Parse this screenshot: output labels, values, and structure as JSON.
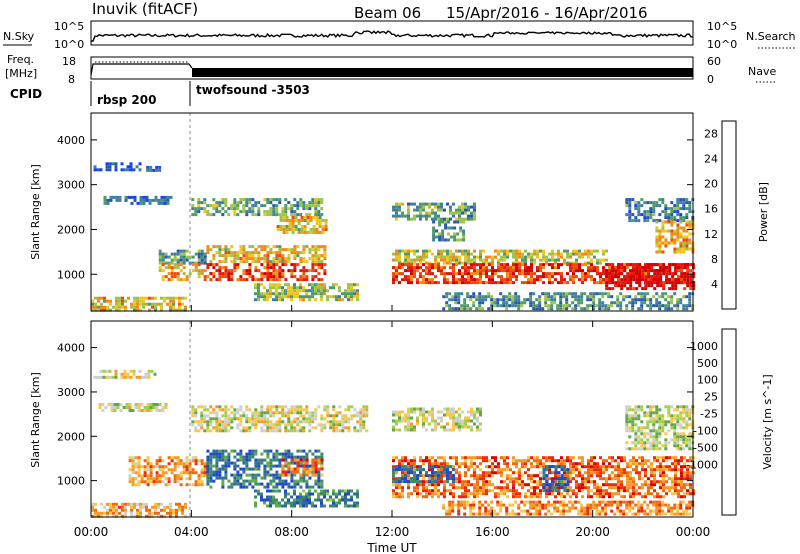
{
  "header": {
    "station": "Inuvik (fitACF)",
    "beam": "Beam 06",
    "dates": "15/Apr/2016 - 16/Apr/2016"
  },
  "top_panels": {
    "nsky_label": "N.Sky",
    "nsearch_label": "N.Search",
    "nsky_ticks": [
      "10^5",
      "10^0"
    ],
    "nsearch_ticks": [
      "10^5",
      "10^0"
    ],
    "freq_label_1": "Freq.",
    "freq_label_2": "[MHz]",
    "freq_ticks": [
      "18",
      "8"
    ],
    "nave_label": "Nave",
    "nave_ticks": [
      "60",
      "0"
    ],
    "cpid_label": "CPID",
    "cpid_segments": [
      {
        "name": "rbsp 200",
        "start_hour": 0
      },
      {
        "name": "twofsound -3503",
        "start_hour": 4
      }
    ]
  },
  "chart_data": [
    {
      "type": "heatmap",
      "panel": "power",
      "ylabel": "Slant Range [km]",
      "yticks": [
        "1000",
        "2000",
        "3000",
        "4000"
      ],
      "ylim": [
        180,
        4600
      ],
      "xlim_hours": [
        0,
        24
      ],
      "colorbar": {
        "label": "Power [dB]",
        "ticks": [
          "4",
          "8",
          "12",
          "16",
          "20",
          "24",
          "28"
        ],
        "range": [
          0,
          30
        ],
        "colors": [
          "#1a3cff",
          "#2a58b0",
          "#3f7fa0",
          "#4f9a6a",
          "#9ec24a",
          "#f2c51e",
          "#f48a16",
          "#f04a10",
          "#e41a0e",
          "#d40000"
        ]
      },
      "regions": [
        {
          "t0": 0.1,
          "t1": 1.9,
          "r0": 3350,
          "r1": 3500,
          "level": 0.1
        },
        {
          "t0": 2.2,
          "t1": 3.0,
          "r0": 3300,
          "r1": 3420,
          "level": 0.15
        },
        {
          "t0": 0.5,
          "t1": 3.2,
          "r0": 2600,
          "r1": 2750,
          "level": 0.2
        },
        {
          "t0": 4.0,
          "t1": 9.2,
          "r0": 2350,
          "r1": 2700,
          "level": 0.35
        },
        {
          "t0": 7.4,
          "t1": 9.4,
          "r0": 1950,
          "r1": 2300,
          "level": 0.55
        },
        {
          "t0": 2.7,
          "t1": 4.6,
          "r0": 1250,
          "r1": 1550,
          "level": 0.3
        },
        {
          "t0": 2.7,
          "t1": 4.6,
          "r0": 900,
          "r1": 1250,
          "level": 0.6
        },
        {
          "t0": 4.6,
          "t1": 9.3,
          "r0": 1250,
          "r1": 1650,
          "level": 0.55
        },
        {
          "t0": 4.6,
          "t1": 9.3,
          "r0": 850,
          "r1": 1250,
          "level": 0.8
        },
        {
          "t0": 6.5,
          "t1": 10.6,
          "r0": 400,
          "r1": 800,
          "level": 0.45
        },
        {
          "t0": 0.0,
          "t1": 3.8,
          "r0": 200,
          "r1": 500,
          "level": 0.55
        },
        {
          "t0": 12.0,
          "t1": 15.3,
          "r0": 2200,
          "r1": 2600,
          "level": 0.35
        },
        {
          "t0": 13.6,
          "t1": 14.8,
          "r0": 1750,
          "r1": 2200,
          "level": 0.3
        },
        {
          "t0": 12.0,
          "t1": 20.5,
          "r0": 1250,
          "r1": 1550,
          "level": 0.5
        },
        {
          "t0": 12.0,
          "t1": 24.0,
          "r0": 800,
          "r1": 1250,
          "level": 0.8
        },
        {
          "t0": 20.5,
          "t1": 24.0,
          "r0": 700,
          "r1": 1250,
          "level": 0.95
        },
        {
          "t0": 21.3,
          "t1": 24.0,
          "r0": 2200,
          "r1": 2700,
          "level": 0.25
        },
        {
          "t0": 22.5,
          "t1": 24.0,
          "r0": 1500,
          "r1": 2200,
          "level": 0.6
        },
        {
          "t0": 14.0,
          "t1": 24.0,
          "r0": 250,
          "r1": 600,
          "level": 0.3
        }
      ]
    },
    {
      "type": "heatmap",
      "panel": "velocity",
      "ylabel": "Slant Range [km]",
      "yticks": [
        "1000",
        "2000",
        "3000",
        "4000"
      ],
      "ylim": [
        180,
        4600
      ],
      "xlim_hours": [
        0,
        24
      ],
      "xticks": [
        "00:00",
        "04:00",
        "08:00",
        "12:00",
        "16:00",
        "20:00",
        "00:00"
      ],
      "xlabel": "Time UT",
      "colorbar": {
        "label": "Velocity [m s^-1]",
        "ticks": [
          "1000",
          "500",
          "100",
          "25",
          "-25",
          "-100",
          "-500",
          "-1000"
        ],
        "colors": [
          "#1f49c8",
          "#2f6aa0",
          "#3d8a6a",
          "#61a84a",
          "#9fd24a",
          "#cfcfcf",
          "#f6c84a",
          "#f59a2a",
          "#f06a10",
          "#ee2a0a",
          "#dc0000"
        ]
      },
      "regions": [
        {
          "t0": 0.1,
          "t1": 2.5,
          "r0": 3350,
          "r1": 3500,
          "level": 0.5
        },
        {
          "t0": 0.3,
          "t1": 3.0,
          "r0": 2600,
          "r1": 2750,
          "level": 0.5
        },
        {
          "t0": 4.0,
          "t1": 11.0,
          "r0": 2150,
          "r1": 2700,
          "level": 0.5
        },
        {
          "t0": 1.5,
          "t1": 4.5,
          "r0": 900,
          "r1": 1550,
          "level": 0.7
        },
        {
          "t0": 4.6,
          "t1": 9.2,
          "r0": 850,
          "r1": 1700,
          "level": 0.15
        },
        {
          "t0": 7.6,
          "t1": 9.2,
          "r0": 1100,
          "r1": 1500,
          "level": 0.75
        },
        {
          "t0": 6.5,
          "t1": 10.6,
          "r0": 450,
          "r1": 800,
          "level": 0.2
        },
        {
          "t0": 0.0,
          "t1": 3.8,
          "r0": 200,
          "r1": 500,
          "level": 0.65
        },
        {
          "t0": 12.0,
          "t1": 15.5,
          "r0": 2150,
          "r1": 2650,
          "level": 0.48
        },
        {
          "t0": 12.0,
          "t1": 24.0,
          "r0": 650,
          "r1": 1550,
          "level": 0.78
        },
        {
          "t0": 12.0,
          "t1": 14.5,
          "r0": 1000,
          "r1": 1350,
          "level": 0.1
        },
        {
          "t0": 18.0,
          "t1": 19.0,
          "r0": 800,
          "r1": 1350,
          "level": 0.1
        },
        {
          "t0": 21.3,
          "t1": 24.0,
          "r0": 1700,
          "r1": 2700,
          "level": 0.45
        },
        {
          "t0": 14.0,
          "t1": 24.0,
          "r0": 250,
          "r1": 550,
          "level": 0.72
        }
      ]
    }
  ]
}
